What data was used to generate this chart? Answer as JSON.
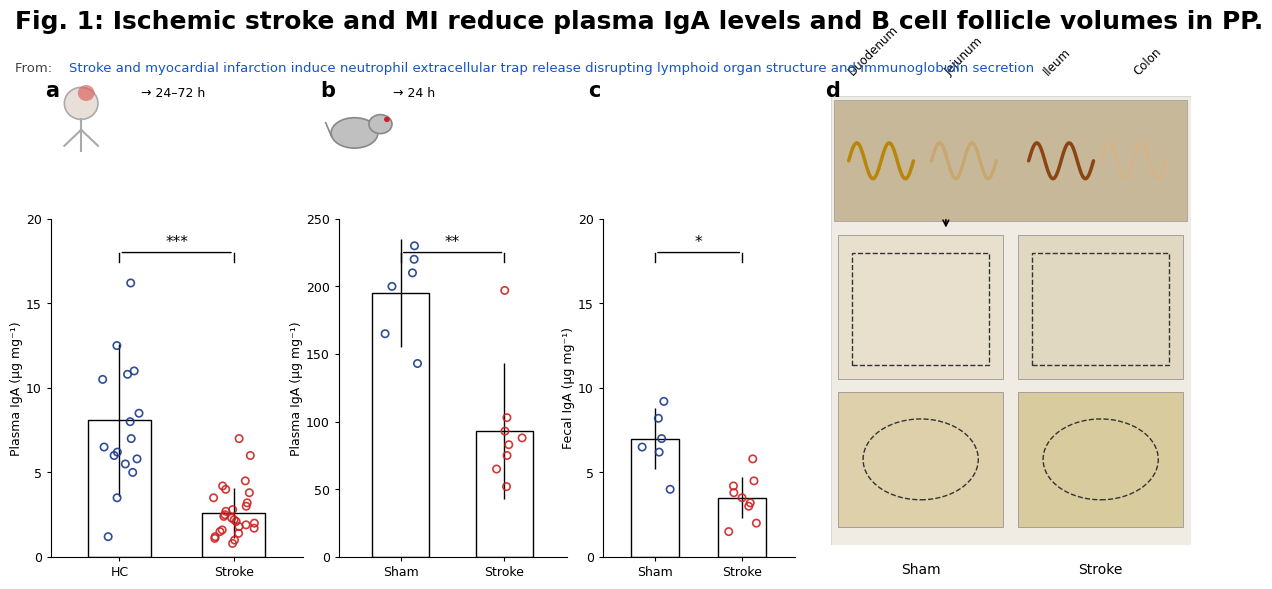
{
  "title": "Fig. 1: Ischemic stroke and MI reduce plasma IgA levels and B cell follicle volumes in PP.",
  "subtitle": "Stroke and myocardial infarction induce neutrophil extracellular trap release disrupting lymphoid organ structure and immunoglobulin secretion",
  "subtitle_prefix": "From: ",
  "title_fontsize": 18,
  "subtitle_fontsize": 10,
  "bg_color": "#ffffff",
  "panel_a": {
    "label": "a",
    "time_label": "→ 24–72 h",
    "ylabel": "Plasma IgA (µg mg⁻¹)",
    "categories": [
      "HC",
      "Stroke"
    ],
    "bar_means": [
      8.1,
      2.6
    ],
    "bar_errors": [
      4.5,
      1.5
    ],
    "ylim": [
      0,
      20
    ],
    "yticks": [
      0,
      5,
      10,
      15,
      20
    ],
    "sig_label": "***",
    "bar_color": "#ffffff",
    "bar_edgecolor": "#000000",
    "hc_dots": [
      16.2,
      12.5,
      11.0,
      10.8,
      10.5,
      8.5,
      8.0,
      7.0,
      6.5,
      6.2,
      6.0,
      5.8,
      5.5,
      5.0,
      3.5,
      1.2
    ],
    "stroke_dots": [
      7.0,
      6.0,
      4.5,
      4.2,
      4.0,
      3.8,
      3.5,
      3.2,
      3.0,
      2.8,
      2.7,
      2.5,
      2.4,
      2.3,
      2.2,
      2.1,
      2.0,
      1.9,
      1.8,
      1.7,
      1.6,
      1.5,
      1.4,
      1.2,
      1.1,
      1.0,
      0.8
    ],
    "dot_color_hc": "#1a3a8a",
    "dot_color_stroke": "#cc2222"
  },
  "panel_b": {
    "label": "b",
    "time_label": "→ 24 h",
    "ylabel": "Plasma IgA (µg mg⁻¹)",
    "categories": [
      "Sham",
      "Stroke"
    ],
    "bar_means": [
      195,
      93
    ],
    "bar_errors": [
      40,
      50
    ],
    "ylim": [
      0,
      250
    ],
    "yticks": [
      0,
      50,
      100,
      150,
      200,
      250
    ],
    "sig_label": "**",
    "bar_color": "#ffffff",
    "bar_edgecolor": "#000000",
    "sham_dots": [
      230,
      220,
      210,
      200,
      165,
      143
    ],
    "stroke_dots": [
      197,
      103,
      93,
      88,
      83,
      75,
      65,
      52
    ],
    "dot_color_sham": "#1a3a8a",
    "dot_color_stroke": "#cc2222"
  },
  "panel_c": {
    "label": "c",
    "ylabel": "Fecal IgA (µg mg⁻¹)",
    "categories": [
      "Sham",
      "Stroke"
    ],
    "bar_means": [
      7.0,
      3.5
    ],
    "bar_errors": [
      1.8,
      1.2
    ],
    "ylim": [
      0,
      20
    ],
    "yticks": [
      0,
      5,
      10,
      15,
      20
    ],
    "sig_label": "*",
    "bar_color": "#ffffff",
    "bar_edgecolor": "#000000",
    "sham_dots": [
      9.2,
      8.2,
      7.0,
      6.5,
      6.2,
      4.0
    ],
    "stroke_dots": [
      5.8,
      4.5,
      4.2,
      3.8,
      3.5,
      3.2,
      3.0,
      2.0,
      1.5
    ],
    "dot_color_sham": "#1a3a8a",
    "dot_color_stroke": "#cc2222"
  },
  "panel_d": {
    "label": "d",
    "sublabels": [
      "Sham",
      "Stroke"
    ],
    "col_labels": [
      "Duodenum",
      "Jejunum",
      "Ileum",
      "Colon"
    ]
  }
}
